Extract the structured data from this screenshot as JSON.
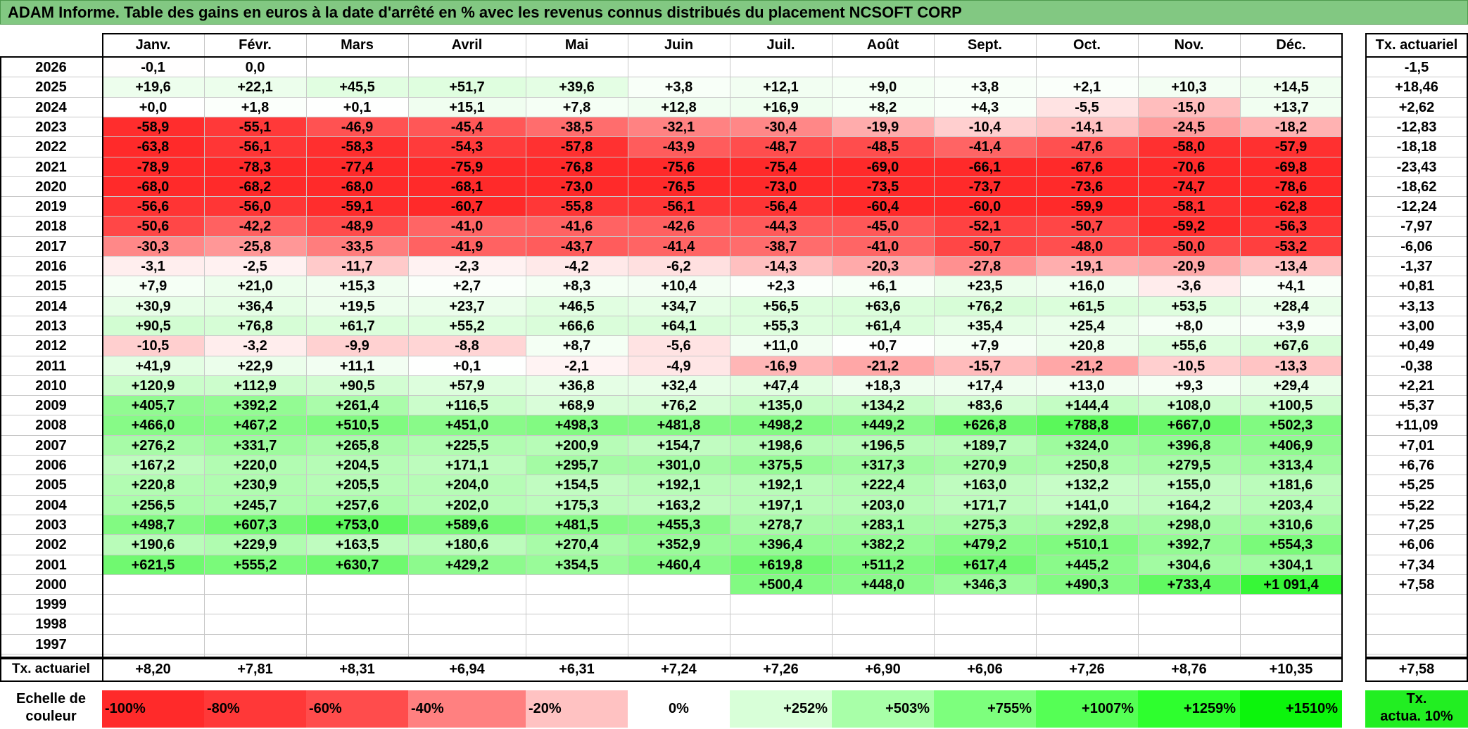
{
  "title": "ADAM Informe. Table des gains en euros à la date d'arrêté en % avec les revenus connus distribués du placement NCSOFT CORP",
  "months": [
    "Janv.",
    "Févr.",
    "Mars",
    "Avril",
    "Mai",
    "Juin",
    "Juil.",
    "Août",
    "Sept.",
    "Oct.",
    "Nov.",
    "Déc."
  ],
  "right_header": "Tx. actuariel",
  "rows": [
    {
      "year": "2026",
      "values": [
        "-0,1",
        "0,0",
        "",
        "",
        "",
        "",
        "",
        "",
        "",
        "",
        "",
        ""
      ],
      "tx": "-1,5"
    },
    {
      "year": "2025",
      "values": [
        "+19,6",
        "+22,1",
        "+45,5",
        "+51,7",
        "+39,6",
        "+3,8",
        "+12,1",
        "+9,0",
        "+3,8",
        "+2,1",
        "+10,3",
        "+14,5"
      ],
      "tx": "+18,46"
    },
    {
      "year": "2024",
      "values": [
        "+0,0",
        "+1,8",
        "+0,1",
        "+15,1",
        "+7,8",
        "+12,8",
        "+16,9",
        "+8,2",
        "+4,3",
        "-5,5",
        "-15,0",
        "+13,7"
      ],
      "tx": "+2,62"
    },
    {
      "year": "2023",
      "values": [
        "-58,9",
        "-55,1",
        "-46,9",
        "-45,4",
        "-38,5",
        "-32,1",
        "-30,4",
        "-19,9",
        "-10,4",
        "-14,1",
        "-24,5",
        "-18,2"
      ],
      "tx": "-12,83"
    },
    {
      "year": "2022",
      "values": [
        "-63,8",
        "-56,1",
        "-58,3",
        "-54,3",
        "-57,8",
        "-43,9",
        "-48,7",
        "-48,5",
        "-41,4",
        "-47,6",
        "-58,0",
        "-57,9"
      ],
      "tx": "-18,18"
    },
    {
      "year": "2021",
      "values": [
        "-78,9",
        "-78,3",
        "-77,4",
        "-75,9",
        "-76,8",
        "-75,6",
        "-75,4",
        "-69,0",
        "-66,1",
        "-67,6",
        "-70,6",
        "-69,8"
      ],
      "tx": "-23,43"
    },
    {
      "year": "2020",
      "values": [
        "-68,0",
        "-68,2",
        "-68,0",
        "-68,1",
        "-73,0",
        "-76,5",
        "-73,0",
        "-73,5",
        "-73,7",
        "-73,6",
        "-74,7",
        "-78,6"
      ],
      "tx": "-18,62"
    },
    {
      "year": "2019",
      "values": [
        "-56,6",
        "-56,0",
        "-59,1",
        "-60,7",
        "-55,8",
        "-56,1",
        "-56,4",
        "-60,4",
        "-60,0",
        "-59,9",
        "-58,1",
        "-62,8"
      ],
      "tx": "-12,24"
    },
    {
      "year": "2018",
      "values": [
        "-50,6",
        "-42,2",
        "-48,9",
        "-41,0",
        "-41,6",
        "-42,6",
        "-44,3",
        "-45,0",
        "-52,1",
        "-50,7",
        "-59,2",
        "-56,3"
      ],
      "tx": "-7,97"
    },
    {
      "year": "2017",
      "values": [
        "-30,3",
        "-25,8",
        "-33,5",
        "-41,9",
        "-43,7",
        "-41,4",
        "-38,7",
        "-41,0",
        "-50,7",
        "-48,0",
        "-50,0",
        "-53,2"
      ],
      "tx": "-6,06"
    },
    {
      "year": "2016",
      "values": [
        "-3,1",
        "-2,5",
        "-11,7",
        "-2,3",
        "-4,2",
        "-6,2",
        "-14,3",
        "-20,3",
        "-27,8",
        "-19,1",
        "-20,9",
        "-13,4"
      ],
      "tx": "-1,37"
    },
    {
      "year": "2015",
      "values": [
        "+7,9",
        "+21,0",
        "+15,3",
        "+2,7",
        "+8,3",
        "+10,4",
        "+2,3",
        "+6,1",
        "+23,5",
        "+16,0",
        "-3,6",
        "+4,1"
      ],
      "tx": "+0,81"
    },
    {
      "year": "2014",
      "values": [
        "+30,9",
        "+36,4",
        "+19,5",
        "+23,7",
        "+46,5",
        "+34,7",
        "+56,5",
        "+63,6",
        "+76,2",
        "+61,5",
        "+53,5",
        "+28,4"
      ],
      "tx": "+3,13"
    },
    {
      "year": "2013",
      "values": [
        "+90,5",
        "+76,8",
        "+61,7",
        "+55,2",
        "+66,6",
        "+64,1",
        "+55,3",
        "+61,4",
        "+35,4",
        "+25,4",
        "+8,0",
        "+3,9"
      ],
      "tx": "+3,00"
    },
    {
      "year": "2012",
      "values": [
        "-10,5",
        "-3,2",
        "-9,9",
        "-8,8",
        "+8,7",
        "-5,6",
        "+11,0",
        "+0,7",
        "+7,9",
        "+20,8",
        "+55,6",
        "+67,6"
      ],
      "tx": "+0,49"
    },
    {
      "year": "2011",
      "values": [
        "+41,9",
        "+22,9",
        "+11,1",
        "+0,1",
        "-2,1",
        "-4,9",
        "-16,9",
        "-21,2",
        "-15,7",
        "-21,2",
        "-10,5",
        "-13,3"
      ],
      "tx": "-0,38"
    },
    {
      "year": "2010",
      "values": [
        "+120,9",
        "+112,9",
        "+90,5",
        "+57,9",
        "+36,8",
        "+32,4",
        "+47,4",
        "+18,3",
        "+17,4",
        "+13,0",
        "+9,3",
        "+29,4"
      ],
      "tx": "+2,21"
    },
    {
      "year": "2009",
      "values": [
        "+405,7",
        "+392,2",
        "+261,4",
        "+116,5",
        "+68,9",
        "+76,2",
        "+135,0",
        "+134,2",
        "+83,6",
        "+144,4",
        "+108,0",
        "+100,5"
      ],
      "tx": "+5,37"
    },
    {
      "year": "2008",
      "values": [
        "+466,0",
        "+467,2",
        "+510,5",
        "+451,0",
        "+498,3",
        "+481,8",
        "+498,2",
        "+449,2",
        "+626,8",
        "+788,8",
        "+667,0",
        "+502,3"
      ],
      "tx": "+11,09"
    },
    {
      "year": "2007",
      "values": [
        "+276,2",
        "+331,7",
        "+265,8",
        "+225,5",
        "+200,9",
        "+154,7",
        "+198,6",
        "+196,5",
        "+189,7",
        "+324,0",
        "+396,8",
        "+406,9"
      ],
      "tx": "+7,01"
    },
    {
      "year": "2006",
      "values": [
        "+167,2",
        "+220,0",
        "+204,5",
        "+171,1",
        "+295,7",
        "+301,0",
        "+375,5",
        "+317,3",
        "+270,9",
        "+250,8",
        "+279,5",
        "+313,4"
      ],
      "tx": "+6,76"
    },
    {
      "year": "2005",
      "values": [
        "+220,8",
        "+230,9",
        "+205,5",
        "+204,0",
        "+154,5",
        "+192,1",
        "+192,1",
        "+222,4",
        "+163,0",
        "+132,2",
        "+155,0",
        "+181,6"
      ],
      "tx": "+5,25"
    },
    {
      "year": "2004",
      "values": [
        "+256,5",
        "+245,7",
        "+257,6",
        "+202,0",
        "+175,3",
        "+163,2",
        "+197,1",
        "+203,0",
        "+171,7",
        "+141,0",
        "+164,2",
        "+203,4"
      ],
      "tx": "+5,22"
    },
    {
      "year": "2003",
      "values": [
        "+498,7",
        "+607,3",
        "+753,0",
        "+589,6",
        "+481,5",
        "+455,3",
        "+278,7",
        "+283,1",
        "+275,3",
        "+292,8",
        "+298,0",
        "+310,6"
      ],
      "tx": "+7,25"
    },
    {
      "year": "2002",
      "values": [
        "+190,6",
        "+229,9",
        "+163,5",
        "+180,6",
        "+270,4",
        "+352,9",
        "+396,4",
        "+382,2",
        "+479,2",
        "+510,1",
        "+392,7",
        "+554,3"
      ],
      "tx": "+6,06"
    },
    {
      "year": "2001",
      "values": [
        "+621,5",
        "+555,2",
        "+630,7",
        "+429,2",
        "+354,5",
        "+460,4",
        "+619,8",
        "+511,2",
        "+617,4",
        "+445,2",
        "+304,6",
        "+304,1"
      ],
      "tx": "+7,34"
    },
    {
      "year": "2000",
      "values": [
        "",
        "",
        "",
        "",
        "",
        "",
        "+500,4",
        "+448,0",
        "+346,3",
        "+490,3",
        "+733,4",
        "+1 091,4"
      ],
      "tx": "+7,58"
    },
    {
      "year": "1999",
      "values": [
        "",
        "",
        "",
        "",
        "",
        "",
        "",
        "",
        "",
        "",
        "",
        ""
      ],
      "tx": ""
    },
    {
      "year": "1998",
      "values": [
        "",
        "",
        "",
        "",
        "",
        "",
        "",
        "",
        "",
        "",
        "",
        ""
      ],
      "tx": ""
    },
    {
      "year": "1997",
      "values": [
        "",
        "",
        "",
        "",
        "",
        "",
        "",
        "",
        "",
        "",
        "",
        ""
      ],
      "tx": ""
    }
  ],
  "footer": {
    "label": "Tx. actuariel",
    "values": [
      "+8,20",
      "+7,81",
      "+8,31",
      "+6,94",
      "+6,31",
      "+7,24",
      "+7,26",
      "+6,90",
      "+6,06",
      "+7,26",
      "+8,76",
      "+10,35"
    ],
    "tx": "+7,58"
  },
  "scale": {
    "label_line1": "Echelle de",
    "label_line2": "couleur",
    "items": [
      {
        "text": "-100%",
        "color": "#ff2a2a"
      },
      {
        "text": "-80%",
        "color": "#ff3838"
      },
      {
        "text": "-60%",
        "color": "#ff4c4c"
      },
      {
        "text": "-40%",
        "color": "#ff8080"
      },
      {
        "text": "-20%",
        "color": "#ffc2c2"
      },
      {
        "text": "0%",
        "color": "#ffffff"
      },
      {
        "text": "+252%",
        "color": "#d8ffd8"
      },
      {
        "text": "+503%",
        "color": "#a8ffa8"
      },
      {
        "text": "+755%",
        "color": "#7dff7d"
      },
      {
        "text": "+1007%",
        "color": "#55ff55"
      },
      {
        "text": "+1259%",
        "color": "#2eff2e"
      },
      {
        "text": "+1510%",
        "color": "#0cf50c"
      }
    ],
    "tx_line1": "Tx.",
    "tx_line2": "actua. 10%",
    "tx_color": "#22ee22"
  },
  "colors": {
    "title_bg": "#82c882",
    "neg_max": "#ff2a2a",
    "pos_max": "#0cf50c"
  }
}
